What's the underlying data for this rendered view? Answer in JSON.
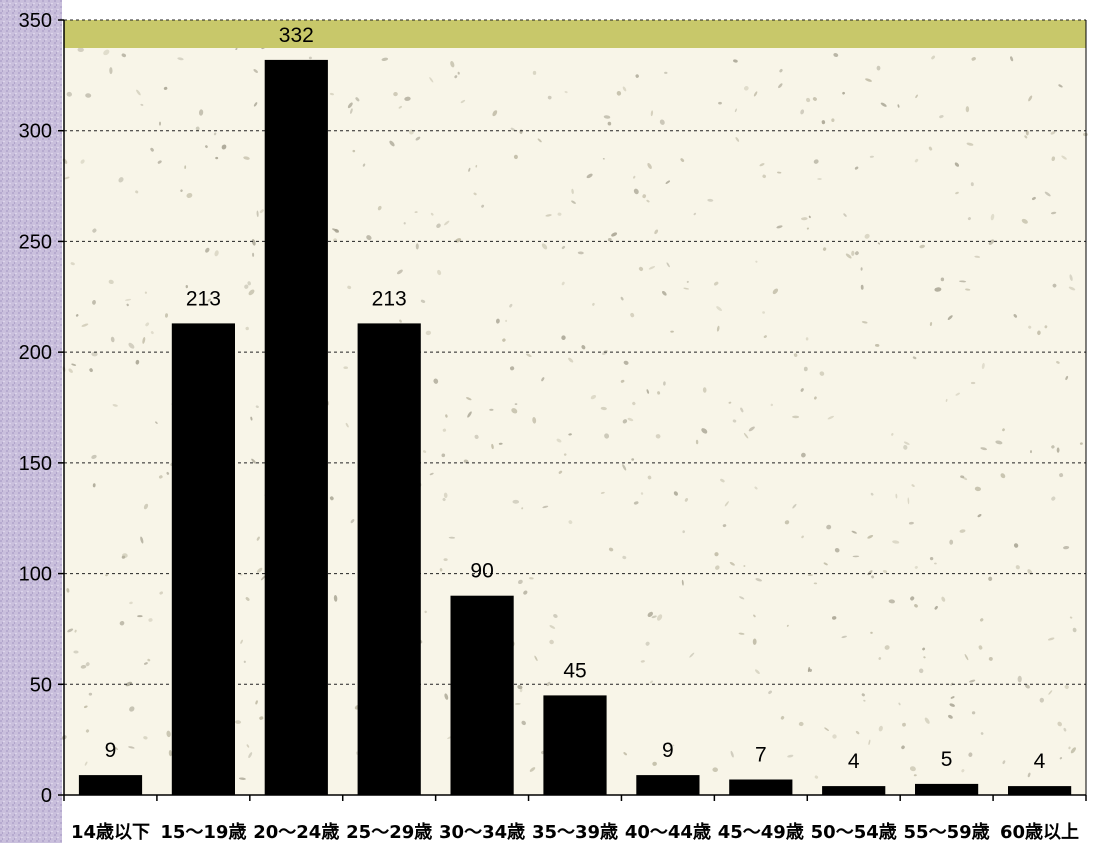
{
  "chart_data": {
    "type": "bar",
    "categories": [
      "14歳以下",
      "15～19歳",
      "20～24歳",
      "25～29歳",
      "30～34歳",
      "35～39歳",
      "40～44歳",
      "45～49歳",
      "50～54歳",
      "55～59歳",
      "60歳以上"
    ],
    "values": [
      9,
      213,
      332,
      213,
      90,
      45,
      9,
      7,
      4,
      5,
      4
    ],
    "data_labels": [
      "9",
      "213",
      "332",
      "213",
      "90",
      "45",
      "9",
      "7",
      "4",
      "5",
      "4"
    ],
    "yticks": [
      "0",
      "50",
      "100",
      "150",
      "200",
      "250",
      "300",
      "350"
    ],
    "ylim": [
      0,
      350
    ],
    "title": "",
    "xlabel": "",
    "ylabel": "",
    "grid": true,
    "bar_color": "#000000",
    "plot_background": "#f8f5e8",
    "band_color": "#c8c86a",
    "side_color": "#c4bad6"
  }
}
